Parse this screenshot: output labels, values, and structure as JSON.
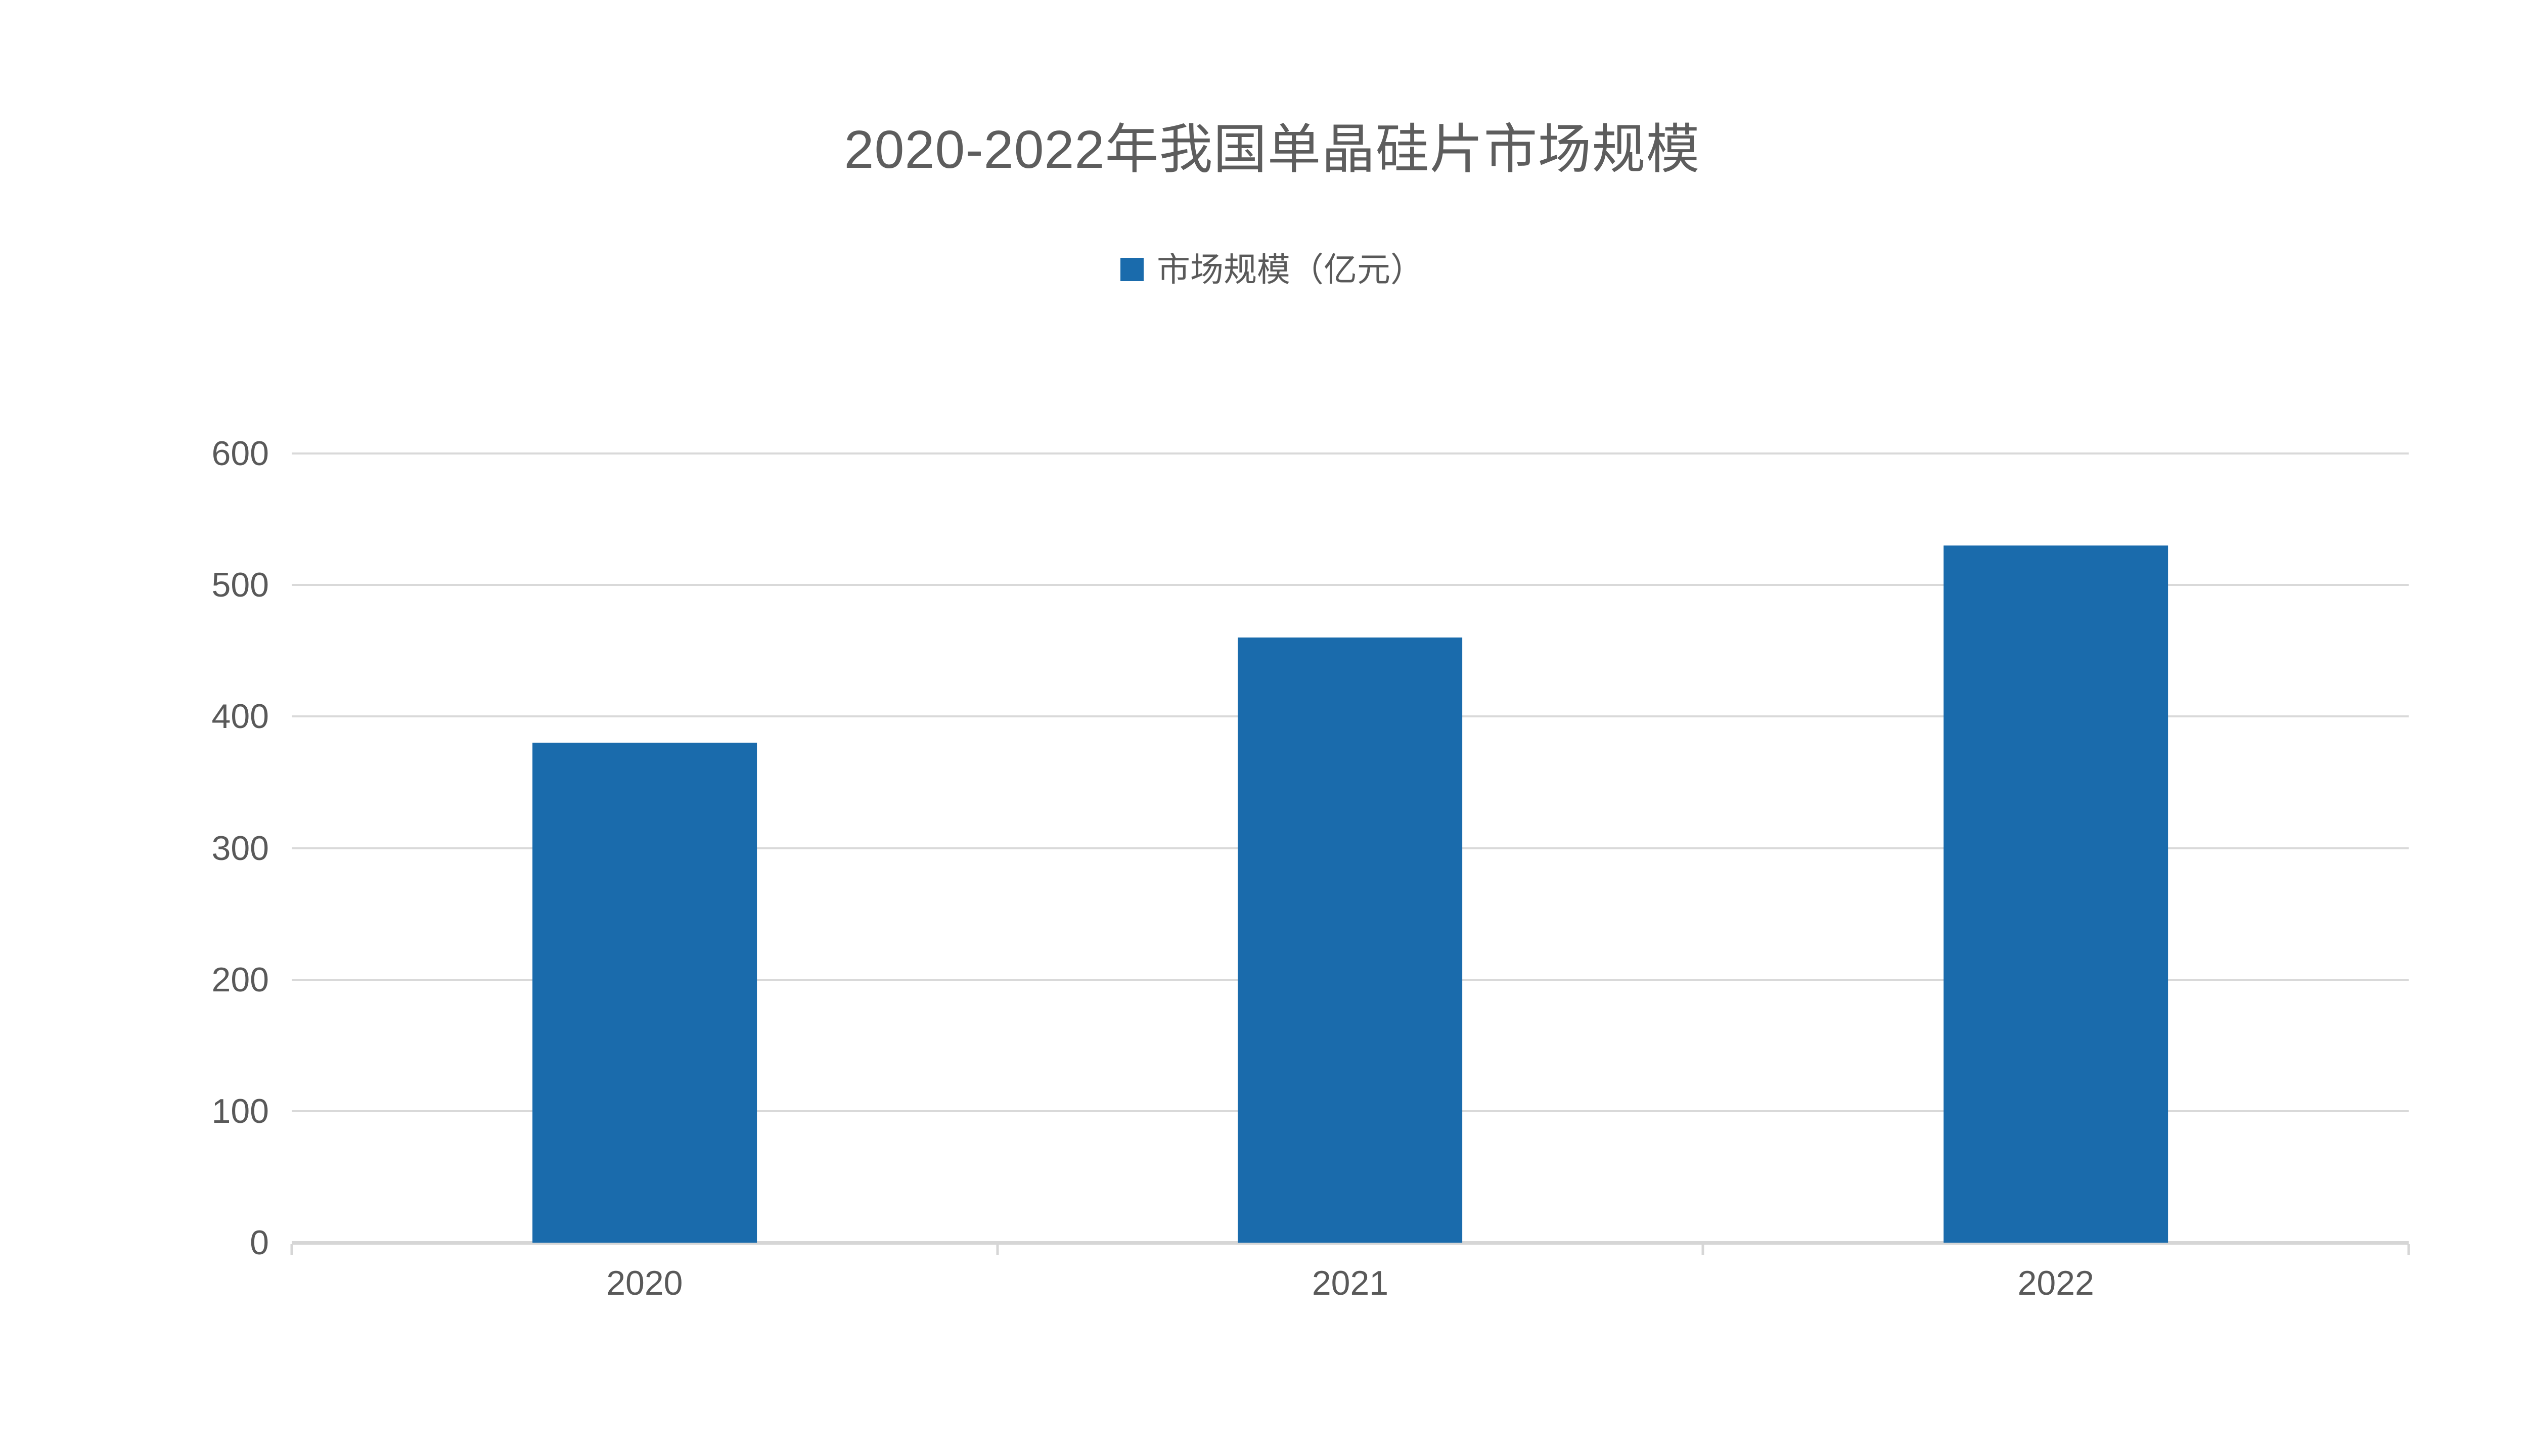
{
  "page": {
    "background": "#ffffff"
  },
  "chart_data": {
    "type": "bar",
    "title": "2020-2022年我国单晶硅片市场规模",
    "legend": [
      {
        "label": "市场规模（亿元）"
      }
    ],
    "legend_position": "top-center",
    "categories": [
      "2020",
      "2021",
      "2022"
    ],
    "series": [
      {
        "name": "市场规模（亿元）",
        "color": "#1A6BAC",
        "values": [
          380,
          460,
          530
        ]
      }
    ],
    "ylim": [
      0,
      600
    ],
    "yticks": [
      0,
      100,
      200,
      300,
      400,
      500,
      600
    ],
    "grid": true,
    "xlabel": "",
    "ylabel": ""
  },
  "colors": {
    "bar": "#1A6BAC",
    "gridline": "#D9D9D9",
    "axis_line": "#D6D6D6",
    "tick_text": "#595959",
    "title_text": "#5D5D5D"
  }
}
